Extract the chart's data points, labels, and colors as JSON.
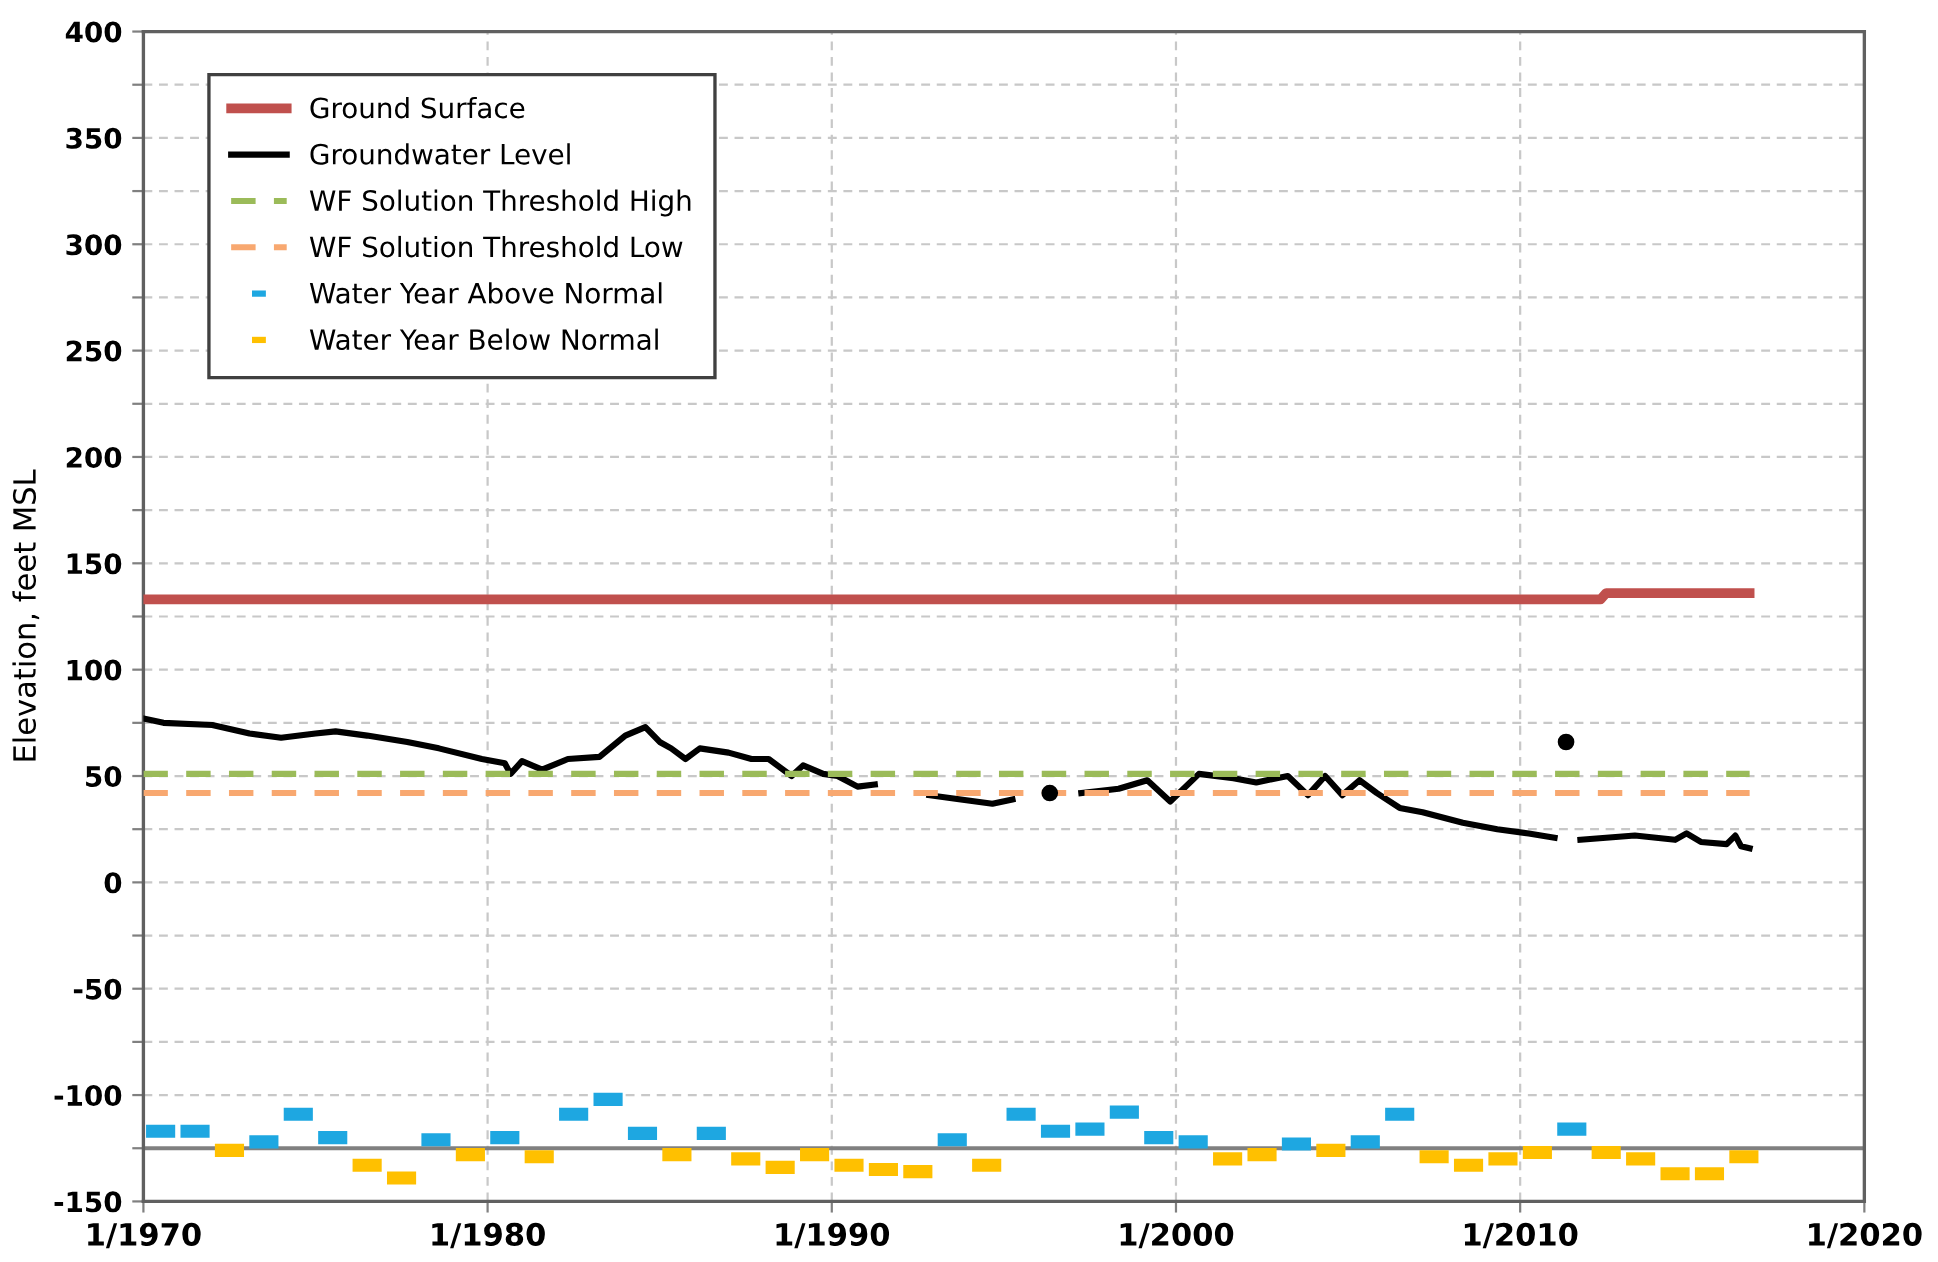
{
  "chart_data": {
    "type": "line",
    "ylabel": "Elevation, feet MSL",
    "xlim": [
      "1970-01",
      "2020-01"
    ],
    "xticks": [
      {
        "value": "1970-01",
        "label": "1/1970"
      },
      {
        "value": "1980-01",
        "label": "1/1980"
      },
      {
        "value": "1990-01",
        "label": "1/1990"
      },
      {
        "value": "2000-01",
        "label": "1/2000"
      },
      {
        "value": "2010-01",
        "label": "1/2010"
      },
      {
        "value": "2020-01",
        "label": "1/2020"
      }
    ],
    "ylim": [
      -150,
      400
    ],
    "yticks": [
      -150,
      {
        "value": -125,
        "label": null
      },
      -100,
      {
        "value": -75,
        "label": null
      },
      -50,
      {
        "value": -25,
        "label": null
      },
      0,
      {
        "value": 25,
        "label": null
      },
      50,
      {
        "value": 75,
        "label": null
      },
      100,
      {
        "value": 125,
        "label": null
      },
      150,
      {
        "value": 175,
        "label": null
      },
      200,
      {
        "value": 225,
        "label": null
      },
      250,
      {
        "value": 275,
        "label": null
      },
      300,
      {
        "value": 325,
        "label": null
      },
      350,
      {
        "value": 375,
        "label": null
      },
      400
    ],
    "grid": true,
    "legend": "top left",
    "ref_lines": [
      {
        "axis": "y",
        "value": -125,
        "label": null,
        "color": "#808080",
        "line_style": "solid"
      }
    ],
    "series": [
      {
        "name": "Ground Surface",
        "color": "#c0504d",
        "line_style": "solid",
        "x": [
          "1970-01",
          "2012-05",
          "2012-07",
          "2016-09"
        ],
        "values": [
          133,
          133,
          136,
          136
        ]
      },
      {
        "name": "Groundwater Level",
        "color": "#000000",
        "line_style": "solid",
        "x": [
          "1970-01",
          "1970-08",
          "1972-01",
          "1973-02",
          "1974-01",
          "1975-01",
          "1975-08",
          "1976-07",
          "1977-09",
          "1978-08",
          "1979-11",
          "1980-07",
          "1980-09",
          "1981-01",
          "1981-08",
          "1982-05",
          "1983-04",
          "1984-01",
          "1984-08",
          "1985-01",
          "1985-05",
          "1985-10",
          "1986-03",
          "1987-01",
          "1987-09",
          "1988-03",
          "1988-11",
          "1989-03",
          "1989-10",
          "1990-03",
          "1990-10",
          "1991-04",
          "1992-01",
          "1992-11",
          "1993-10",
          "1994-09",
          "1995-04",
          "1995-10",
          "1996-05",
          "1996-11",
          "1997-04",
          "1998-05",
          "1999-03",
          "1999-11",
          "2000-09",
          "2001-09",
          "2002-05",
          "2003-04",
          "2003-11",
          "2004-05",
          "2004-11",
          "2005-05",
          "2005-11",
          "2006-07",
          "2007-03",
          "2008-05",
          "2009-05",
          "2010-04",
          "2011-01",
          "2011-03",
          "2011-05",
          "2011-07",
          "2011-10",
          "2013-05",
          "2014-07",
          "2014-11",
          "2015-04",
          "2016-01",
          "2016-04",
          "2016-06",
          "2016-09"
        ],
        "values": [
          77,
          75,
          74,
          70,
          68,
          70,
          71,
          69,
          66,
          63,
          58,
          56,
          51,
          57,
          53,
          58,
          59,
          69,
          73,
          66,
          63,
          58,
          63,
          61,
          58,
          58,
          50,
          55,
          51,
          50,
          45,
          46,
          null,
          41,
          39,
          37,
          39,
          null,
          42,
          null,
          42,
          44,
          48,
          38,
          51,
          49,
          47,
          50,
          41,
          50,
          41,
          48,
          42,
          35,
          33,
          28,
          25,
          23,
          21,
          null,
          66,
          null,
          20,
          22,
          20,
          23,
          19,
          18,
          22,
          17,
          16
        ]
      },
      {
        "name": "WF Solution Threshold High",
        "color": "#9bbb59",
        "line_style": "dashed",
        "x": [
          "1970-01",
          "2016-09"
        ],
        "values": [
          51,
          51
        ]
      },
      {
        "name": "WF Solution Threshold Low",
        "color": "#f8a870",
        "line_style": "dashed",
        "x": [
          "1970-01",
          "2016-09"
        ],
        "values": [
          42,
          42
        ]
      },
      {
        "name": "Water Year Above Normal",
        "type": "scatter",
        "marker": "square",
        "color": "#1ea7e1",
        "x": [
          "1970-07",
          "1971-07",
          "1973-07",
          "1974-07",
          "1975-07",
          "1978-07",
          "1980-07",
          "1982-07",
          "1983-07",
          "1984-07",
          "1986-07",
          "1993-07",
          "1995-07",
          "1996-07",
          "1997-07",
          "1998-07",
          "1999-07",
          "2000-07",
          "2003-07",
          "2005-07",
          "2006-07",
          "2011-07"
        ],
        "values": [
          -117,
          -117,
          -122,
          -109,
          -120,
          -121,
          -120,
          -109,
          -102,
          -118,
          -118,
          -121,
          -109,
          -117,
          -116,
          -108,
          -120,
          -122,
          -123,
          -122,
          -109,
          -116
        ]
      },
      {
        "name": "Water Year Below Normal",
        "type": "scatter",
        "marker": "square",
        "color": "#ffc000",
        "x": [
          "1972-07",
          "1976-07",
          "1977-07",
          "1979-07",
          "1981-07",
          "1985-07",
          "1987-07",
          "1988-07",
          "1989-07",
          "1990-07",
          "1991-07",
          "1992-07",
          "1994-07",
          "2001-07",
          "2002-07",
          "2004-07",
          "2007-07",
          "2008-07",
          "2009-07",
          "2010-07",
          "2012-07",
          "2013-07",
          "2014-07",
          "2015-07",
          "2016-07"
        ],
        "values": [
          -126,
          -133,
          -139,
          -128,
          -129,
          -128,
          -130,
          -134,
          -128,
          -133,
          -135,
          -136,
          -133,
          -130,
          -128,
          -126,
          -129,
          -133,
          -130,
          -127,
          -127,
          -130,
          -137,
          -137,
          -129
        ]
      }
    ]
  }
}
